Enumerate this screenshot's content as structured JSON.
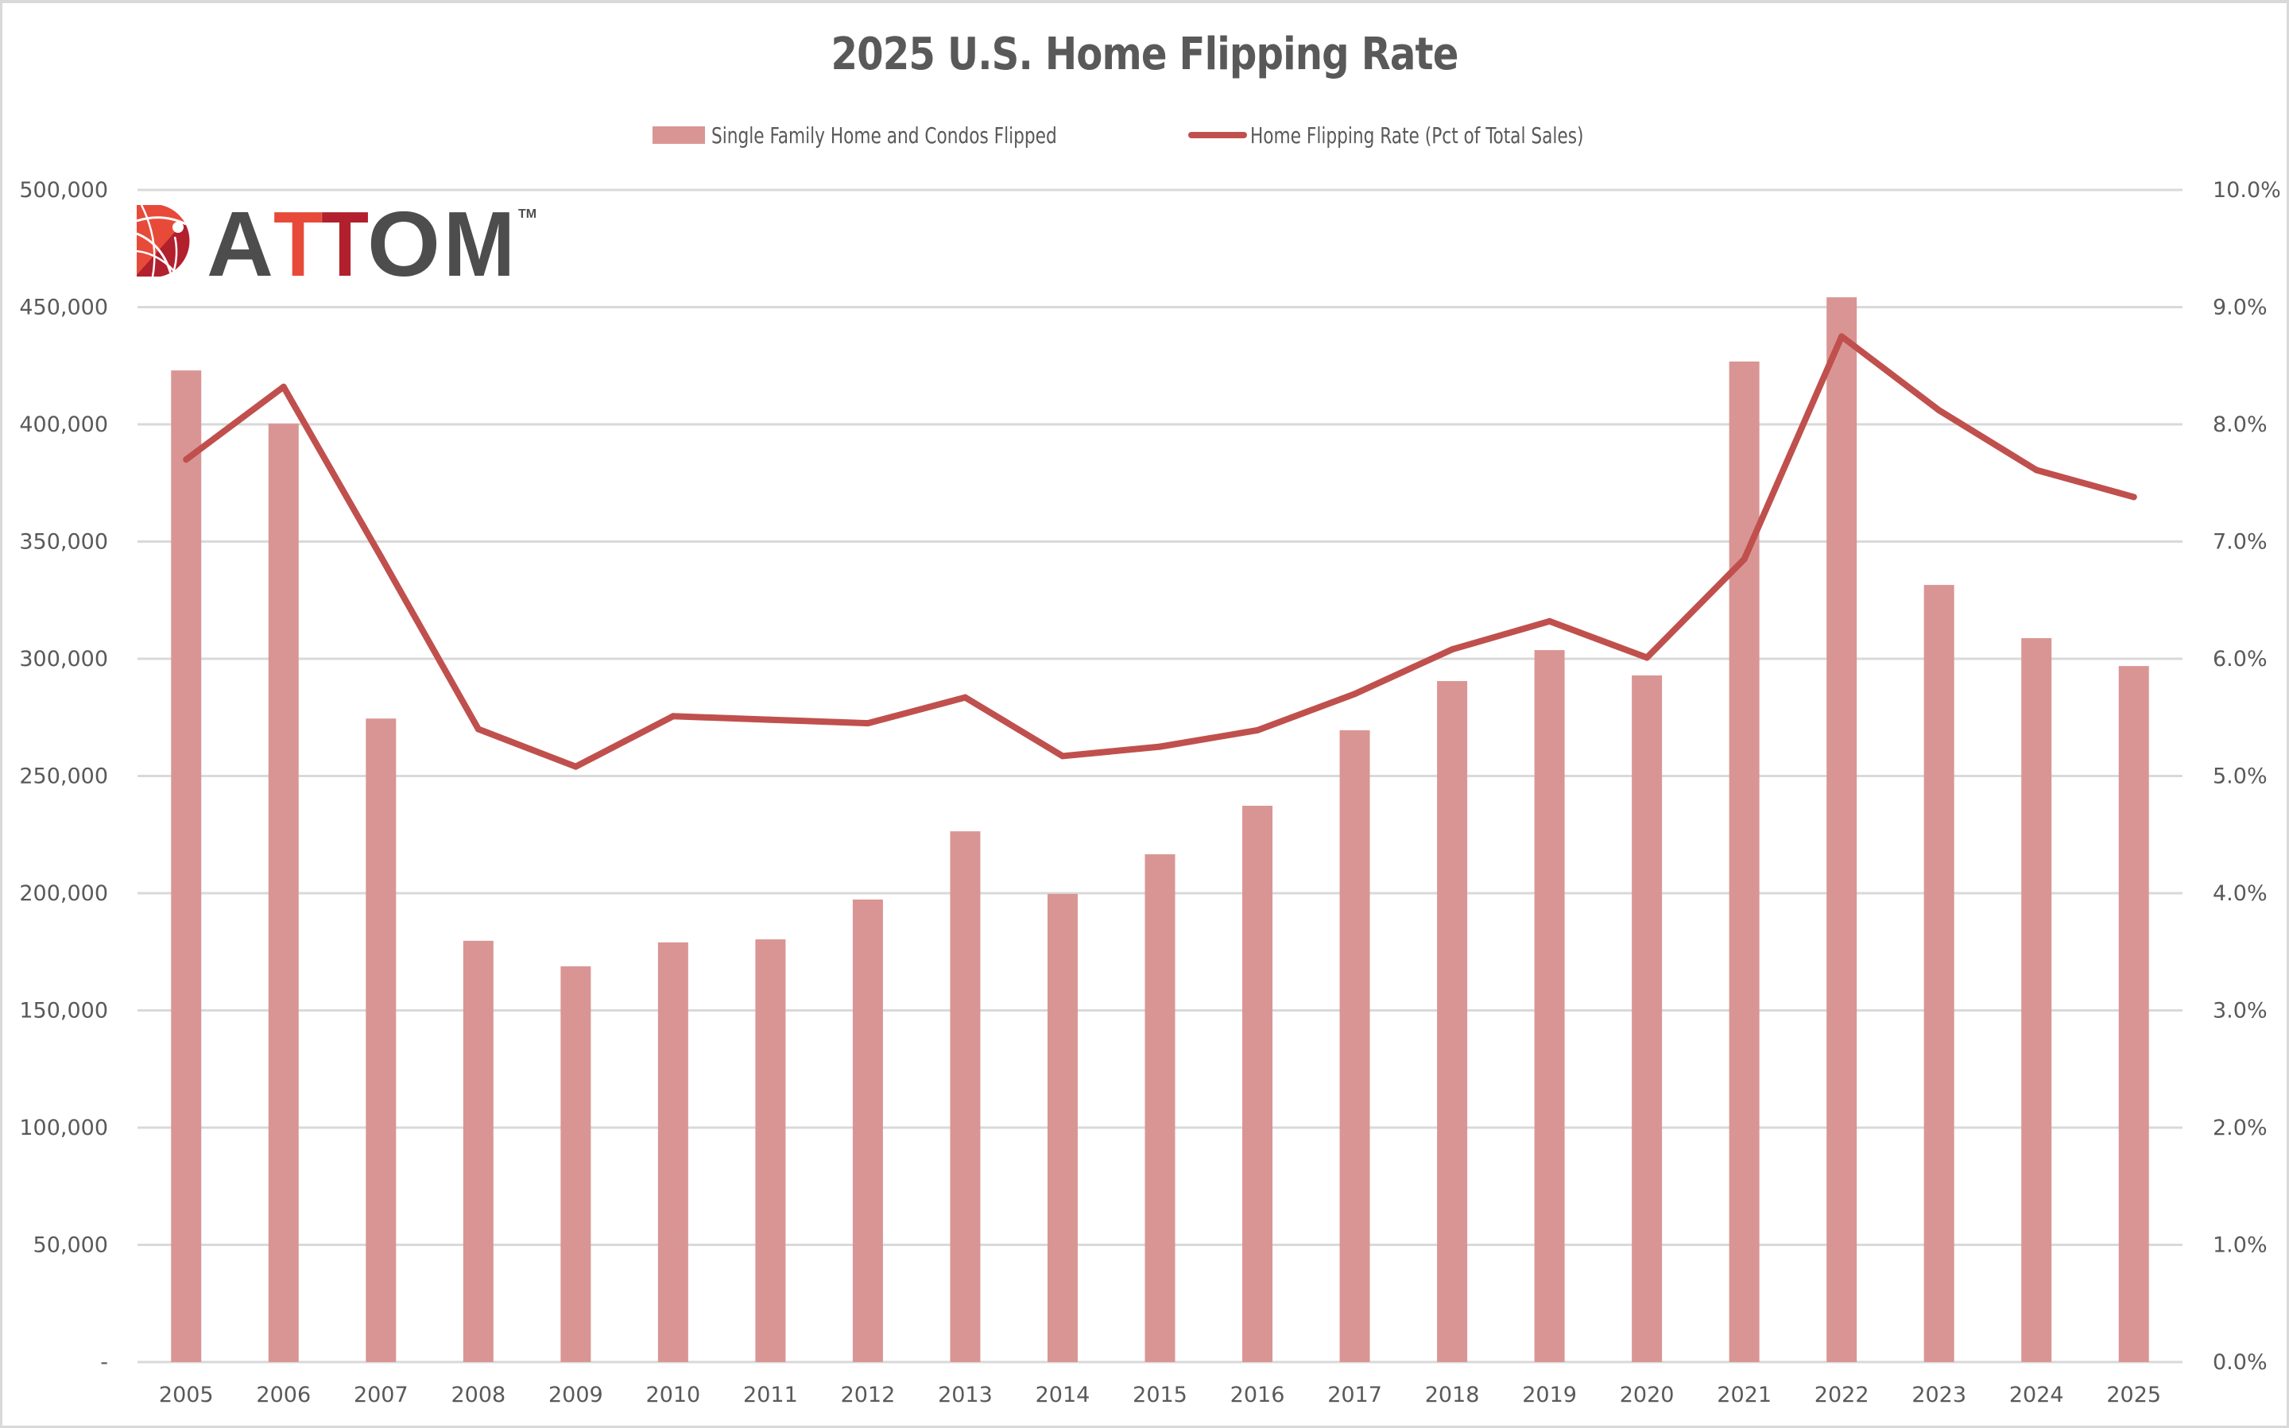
{
  "chart_data": {
    "type": "bar+line",
    "title": "2025 U.S. Home Flipping Rate",
    "categories": [
      "2005",
      "2006",
      "2007",
      "2008",
      "2009",
      "2010",
      "2011",
      "2012",
      "2013",
      "2014",
      "2015",
      "2016",
      "2017",
      "2018",
      "2019",
      "2020",
      "2021",
      "2022",
      "2023",
      "2024",
      "2025"
    ],
    "series": [
      {
        "name": "Single Family Home and Condos Flipped",
        "type": "bar",
        "axis": "left",
        "color": "#d99594",
        "values": [
          423000,
          400300,
          274500,
          179700,
          168800,
          179000,
          180300,
          197300,
          226400,
          199700,
          216600,
          237300,
          269500,
          290500,
          303700,
          292900,
          426800,
          454200,
          331500,
          308800,
          296900
        ]
      },
      {
        "name": "Home Flipping Rate (Pct of Total Sales)",
        "type": "line",
        "axis": "right",
        "color": "#c0504d",
        "values": [
          7.7,
          8.32,
          6.87,
          5.4,
          5.08,
          5.51,
          5.48,
          5.45,
          5.67,
          5.17,
          5.25,
          5.39,
          5.7,
          6.08,
          6.32,
          6.01,
          6.85,
          8.75,
          8.12,
          7.61,
          7.38
        ]
      }
    ],
    "xlabel": "",
    "ylabel_left": "",
    "ylabel_right": "",
    "ylim_left": [
      0,
      500000
    ],
    "ylim_right": [
      0,
      10
    ],
    "yticks_left": [
      "-",
      "50,000",
      "100,000",
      "150,000",
      "200,000",
      "250,000",
      "300,000",
      "350,000",
      "400,000",
      "450,000",
      "500,000"
    ],
    "yticks_right": [
      "0.0%",
      "1.0%",
      "2.0%",
      "3.0%",
      "4.0%",
      "5.0%",
      "6.0%",
      "7.0%",
      "8.0%",
      "9.0%",
      "10.0%"
    ],
    "grid": true,
    "legend_position": "top-center"
  },
  "legend": {
    "bar_label": "Single Family Home and Condos Flipped",
    "line_label": "Home Flipping Rate (Pct of Total Sales)"
  },
  "logo": {
    "text_parts": [
      "A",
      "T",
      "T",
      "O",
      "M"
    ],
    "trademark": "TM",
    "colors": {
      "gray": "#4d4d4d",
      "orange": "#e84a3a",
      "red": "#b21f2d"
    }
  },
  "colors": {
    "bar": "#d99594",
    "line": "#c0504d",
    "grid": "#d9d9d9",
    "text": "#595959"
  }
}
